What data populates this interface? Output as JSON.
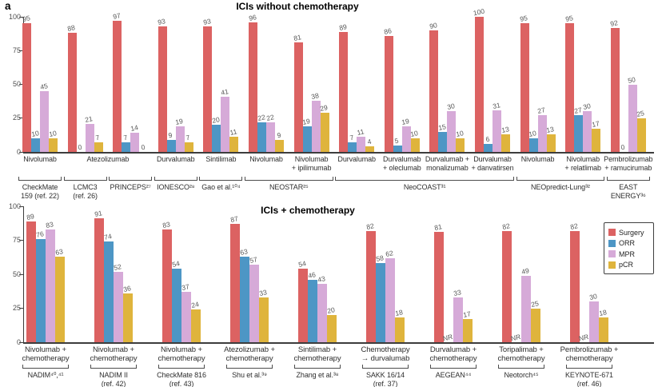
{
  "panel_label": "a",
  "legend": {
    "position": "right-middle-of-lower-chart",
    "items": [
      {
        "label": "Surgery",
        "color": "#dc6262"
      },
      {
        "label": "ORR",
        "color": "#4d96c5"
      },
      {
        "label": "MPR",
        "color": "#d6aad8"
      },
      {
        "label": "pCR",
        "color": "#dfb43c"
      }
    ]
  },
  "chart_data": [
    {
      "type": "bar",
      "title": "ICIs without chemotherapy",
      "ylim": [
        0,
        100
      ],
      "yticks": [
        0,
        25,
        50,
        75,
        100
      ],
      "grid": false,
      "series_names": [
        "Surgery",
        "ORR",
        "MPR",
        "pCR"
      ],
      "series_colors": [
        "#dc6262",
        "#4d96c5",
        "#d6aad8",
        "#dfb43c"
      ],
      "values": [
        [
          95,
          10,
          45,
          10
        ],
        [
          88,
          0,
          21,
          7
        ],
        [
          97,
          7,
          14,
          0
        ],
        [
          93,
          9,
          19,
          7
        ],
        [
          93,
          20,
          41,
          11
        ],
        [
          96,
          22,
          22,
          9
        ],
        [
          81,
          19,
          38,
          29
        ],
        [
          89,
          7,
          11,
          4
        ],
        [
          86,
          5,
          19,
          10
        ],
        [
          90,
          15,
          30,
          10
        ],
        [
          100,
          6,
          31,
          13
        ],
        [
          95,
          10,
          27,
          13
        ],
        [
          95,
          27,
          30,
          17
        ],
        [
          92,
          0,
          50,
          25
        ]
      ],
      "treatments": [
        {
          "text": "Nivolumab",
          "span": [
            0,
            0
          ]
        },
        {
          "text": "Atezolizumab",
          "span": [
            1,
            2
          ]
        },
        {
          "text": "Durvalumab",
          "span": [
            3,
            3
          ]
        },
        {
          "text": "Sintilimab",
          "span": [
            4,
            4
          ]
        },
        {
          "text": "Nivolumab",
          "span": [
            5,
            5
          ]
        },
        {
          "text": "Nivolumab\n+ ipilimumab",
          "span": [
            6,
            6
          ]
        },
        {
          "text": "Durvalumab",
          "span": [
            7,
            7
          ]
        },
        {
          "text": "Durvalumab\n+ oleclumab",
          "span": [
            8,
            8
          ]
        },
        {
          "text": "Durvalumab +\nmonalizumab",
          "span": [
            9,
            9
          ]
        },
        {
          "text": "Durvalumab\n+ danvatirsen",
          "span": [
            10,
            10
          ]
        },
        {
          "text": "Nivolumab",
          "span": [
            11,
            11
          ]
        },
        {
          "text": "Nivolumab\n+ relatlimab",
          "span": [
            12,
            12
          ]
        },
        {
          "text": "Pembrolizumab\n+ ramucirumab",
          "span": [
            13,
            13
          ]
        }
      ],
      "studies": [
        {
          "text": "CheckMate\n159 (ref. 22)",
          "span": [
            0,
            0
          ]
        },
        {
          "text": "LCMC3\n(ref. 26)",
          "span": [
            1,
            1
          ]
        },
        {
          "text": "PRINCEPS²⁷",
          "span": [
            2,
            2
          ]
        },
        {
          "text": "IONESCO²⁸",
          "span": [
            3,
            3
          ]
        },
        {
          "text": "Gao et al.¹⁰⁴",
          "span": [
            4,
            4
          ]
        },
        {
          "text": "NEOSTAR²⁵",
          "span": [
            5,
            6
          ]
        },
        {
          "text": "NeoCOAST³¹",
          "span": [
            7,
            10
          ]
        },
        {
          "text": "NEOpredict-Lung³²",
          "span": [
            11,
            12
          ]
        },
        {
          "text": "EAST\nENERGY³⁶",
          "span": [
            13,
            13
          ]
        }
      ]
    },
    {
      "type": "bar",
      "title": "ICIs + chemotherapy",
      "ylim": [
        0,
        100
      ],
      "yticks": [
        0,
        25,
        50,
        75,
        100
      ],
      "grid": false,
      "series_names": [
        "Surgery",
        "ORR",
        "MPR",
        "pCR"
      ],
      "series_colors": [
        "#dc6262",
        "#4d96c5",
        "#d6aad8",
        "#dfb43c"
      ],
      "values": [
        [
          89,
          76,
          83,
          63
        ],
        [
          91,
          74,
          52,
          36
        ],
        [
          83,
          54,
          37,
          24
        ],
        [
          87,
          63,
          57,
          33
        ],
        [
          54,
          46,
          43,
          20
        ],
        [
          82,
          58,
          62,
          18
        ],
        [
          81,
          "NR",
          33,
          17
        ],
        [
          82,
          "NR",
          49,
          25
        ],
        [
          82,
          "NR",
          30,
          18
        ]
      ],
      "treatments": [
        {
          "text": "Nivolumab +\nchemotherapy",
          "span": [
            0,
            0
          ]
        },
        {
          "text": "Nivolumab +\nchemotherapy",
          "span": [
            1,
            1
          ]
        },
        {
          "text": "Nivolumab +\nchemotherapy",
          "span": [
            2,
            2
          ]
        },
        {
          "text": "Atezolizumab +\nchemotherapy",
          "span": [
            3,
            3
          ]
        },
        {
          "text": "Sintilimab +\nchemotherapy",
          "span": [
            4,
            4
          ]
        },
        {
          "text": "Chemotherapy\n→ durvalumab",
          "span": [
            5,
            5
          ]
        },
        {
          "text": "Durvalumab +\nchemotherapy",
          "span": [
            6,
            6
          ]
        },
        {
          "text": "Toripalimab +\nchemotherapy",
          "span": [
            7,
            7
          ]
        },
        {
          "text": "Pembrolizumab +\nchemotherapy",
          "span": [
            8,
            8
          ]
        }
      ],
      "studies": [
        {
          "text": "NADIM⁴⁰,⁴¹",
          "span": [
            0,
            0
          ]
        },
        {
          "text": "NADIM II\n(ref. 42)",
          "span": [
            1,
            1
          ]
        },
        {
          "text": "CheckMate 816\n(ref. 43)",
          "span": [
            2,
            2
          ]
        },
        {
          "text": "Shu et al.³⁹",
          "span": [
            3,
            3
          ]
        },
        {
          "text": "Zhang et al.³⁸",
          "span": [
            4,
            4
          ]
        },
        {
          "text": "SAKK 16/14\n(ref. 37)",
          "span": [
            5,
            5
          ]
        },
        {
          "text": "AEGEAN⁴⁴",
          "span": [
            6,
            6
          ]
        },
        {
          "text": "Neotorch⁴⁵",
          "span": [
            7,
            7
          ]
        },
        {
          "text": "KEYNOTE-671\n(ref. 46)",
          "span": [
            8,
            8
          ]
        }
      ]
    }
  ]
}
